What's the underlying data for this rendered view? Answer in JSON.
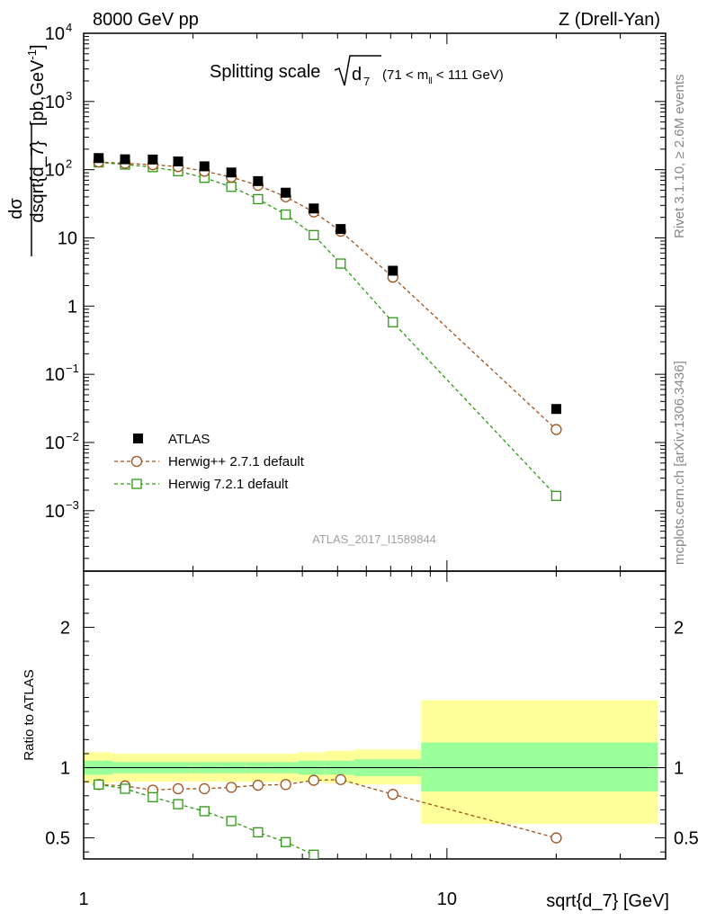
{
  "header": {
    "left": "8000 GeV pp",
    "right": "Z (Drell-Yan)"
  },
  "side_labels": {
    "rivet": "Rivet 3.1.10, ≥ 2.6M events",
    "mcplots": "mcplots.cern.ch [arXiv:1306.3436]"
  },
  "title": {
    "prefix": "Splitting scale",
    "var": "d",
    "var_sub": "7",
    "range_pre": "(71 < m",
    "range_sub": "ll",
    "range_post": " < 111 GeV)"
  },
  "analysis_id": "ATLAS_2017_I1589844",
  "ylabel_top": {
    "num": "dσ",
    "den": "dsqrt{d_7}",
    "units": "[pb,GeV",
    "units_sup": "-1",
    "units_close": "]"
  },
  "ylabel_bottom": "Ratio to ATLAS",
  "xlabel": "sqrt{d_7} [GeV]",
  "colors": {
    "atlas": "#000000",
    "herwigpp": "#a0521a",
    "herwig7": "#2e9a14",
    "band_yellow": "#ffff99",
    "band_green": "#99ff99"
  },
  "chart_data": [
    {
      "type": "scatter",
      "panel": "main",
      "xscale": "log",
      "yscale": "log",
      "xlim": [
        1,
        40
      ],
      "ylim": [
        0.00013,
        10000
      ],
      "xticks": [
        {
          "v": 1,
          "label": "1"
        },
        {
          "v": 10,
          "label": "10"
        }
      ],
      "yticks": [
        {
          "v": 0.001,
          "base": "10",
          "exp": "−3"
        },
        {
          "v": 0.01,
          "base": "10",
          "exp": "−2"
        },
        {
          "v": 0.1,
          "base": "10",
          "exp": "−1"
        },
        {
          "v": 1,
          "base": "1",
          "exp": ""
        },
        {
          "v": 10,
          "base": "10",
          "exp": ""
        },
        {
          "v": 100,
          "base": "10",
          "exp": "2"
        },
        {
          "v": 1000,
          "base": "10",
          "exp": "3"
        },
        {
          "v": 10000,
          "base": "10",
          "exp": "4"
        }
      ],
      "series": [
        {
          "name": "ATLAS",
          "style": "filled-square",
          "x": [
            1.1,
            1.3,
            1.55,
            1.82,
            2.15,
            2.55,
            3.02,
            3.6,
            4.3,
            5.1,
            7.1,
            20.0
          ],
          "y": [
            148,
            142,
            141,
            132,
            112,
            91,
            68,
            46,
            27,
            13.5,
            3.3,
            0.031
          ]
        },
        {
          "name": "Herwig++ 2.7.1 default",
          "style": "open-circle-dashed",
          "x": [
            1.1,
            1.3,
            1.55,
            1.82,
            2.15,
            2.55,
            3.02,
            3.6,
            4.3,
            5.1,
            7.1,
            20.0
          ],
          "y": [
            130,
            124,
            118,
            111,
            95,
            78,
            59,
            40,
            24,
            12.5,
            2.65,
            0.0155
          ]
        },
        {
          "name": "Herwig 7.2.1 default",
          "style": "open-square-dashed",
          "x": [
            1.1,
            1.3,
            1.55,
            1.82,
            2.15,
            2.55,
            3.02,
            3.6,
            4.3,
            5.1,
            7.1,
            20.0
          ],
          "y": [
            128,
            119,
            109,
            95,
            76,
            56,
            37,
            22,
            11,
            4.2,
            0.58,
            0.00165
          ]
        }
      ],
      "legend": {
        "position": "bottom-left",
        "entries": [
          "ATLAS",
          "Herwig++ 2.7.1 default",
          "Herwig 7.2.1 default"
        ]
      }
    },
    {
      "type": "scatter",
      "panel": "ratio",
      "xscale": "log",
      "yscale": "linear",
      "xlim": [
        1,
        40
      ],
      "ylim": [
        0.35,
        2.4
      ],
      "yticks": [
        {
          "v": 0.5,
          "label": "0.5"
        },
        {
          "v": 1,
          "label": "1"
        },
        {
          "v": 2,
          "label": "2"
        }
      ],
      "reference": 1,
      "bands": {
        "edges": [
          1.0,
          1.2,
          1.42,
          1.68,
          1.98,
          2.35,
          2.78,
          3.3,
          3.9,
          4.6,
          5.55,
          8.5,
          38.0
        ],
        "yellow_lo": [
          0.89,
          0.9,
          0.9,
          0.9,
          0.9,
          0.9,
          0.9,
          0.9,
          0.9,
          0.89,
          0.88,
          0.6
        ],
        "yellow_hi": [
          1.11,
          1.1,
          1.1,
          1.1,
          1.1,
          1.1,
          1.1,
          1.1,
          1.11,
          1.12,
          1.13,
          1.48
        ],
        "green_lo": [
          0.95,
          0.96,
          0.96,
          0.96,
          0.96,
          0.96,
          0.96,
          0.96,
          0.95,
          0.95,
          0.94,
          0.83
        ],
        "green_hi": [
          1.05,
          1.04,
          1.04,
          1.04,
          1.04,
          1.04,
          1.04,
          1.04,
          1.05,
          1.05,
          1.06,
          1.18
        ]
      },
      "series": [
        {
          "name": "Herwig++ 2.7.1 default",
          "x": [
            1.1,
            1.3,
            1.55,
            1.82,
            2.15,
            2.55,
            3.02,
            3.6,
            4.3,
            5.1,
            7.1,
            20.0
          ],
          "y": [
            0.88,
            0.87,
            0.84,
            0.85,
            0.85,
            0.86,
            0.875,
            0.88,
            0.91,
            0.915,
            0.81,
            0.5
          ],
          "yerr": [
            0,
            0,
            0,
            0,
            0,
            0,
            0,
            0,
            0,
            0,
            0,
            0.03
          ]
        },
        {
          "name": "Herwig 7.2.1 default",
          "x": [
            1.1,
            1.3,
            1.55,
            1.82,
            2.15,
            2.55,
            3.02,
            3.6,
            4.3
          ],
          "y": [
            0.88,
            0.85,
            0.79,
            0.74,
            0.69,
            0.62,
            0.54,
            0.47,
            0.38
          ],
          "yerr": [
            0,
            0,
            0,
            0,
            0,
            0,
            0,
            0,
            0
          ]
        }
      ]
    }
  ]
}
